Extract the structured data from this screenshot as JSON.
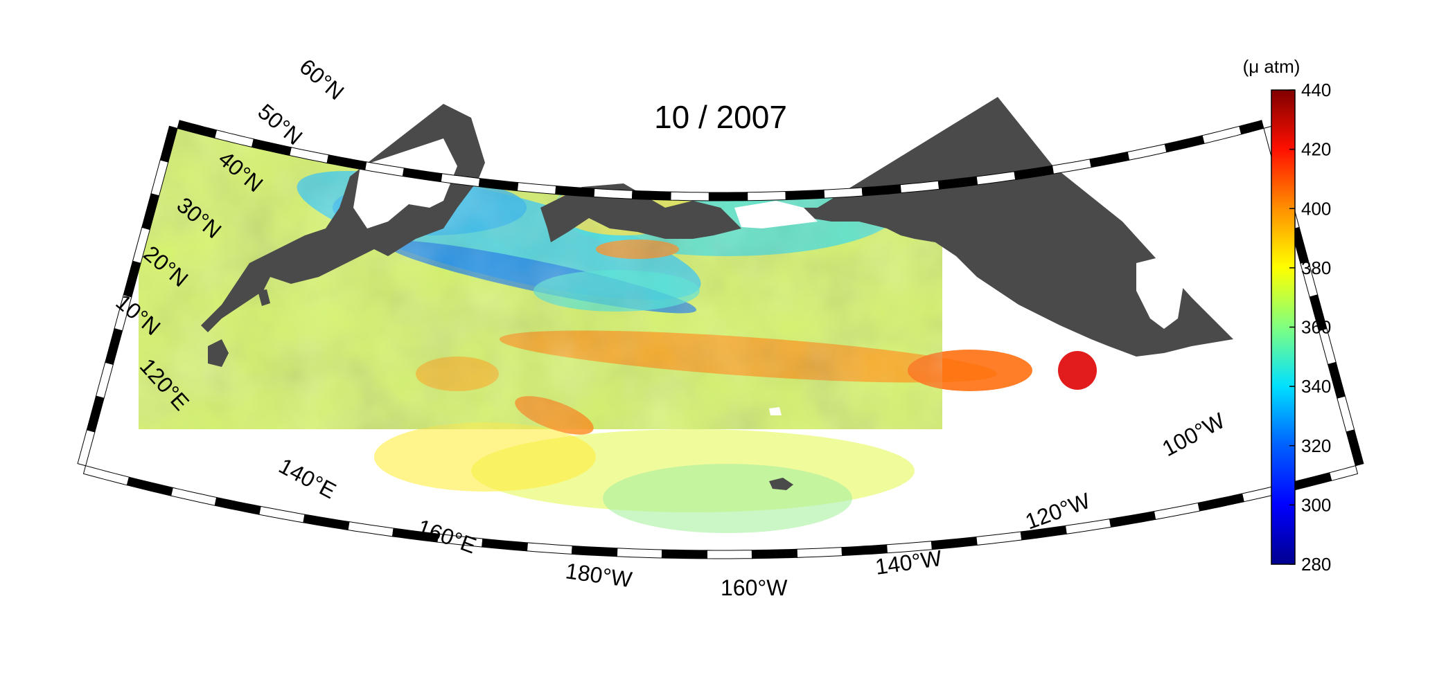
{
  "title": "10 / 2007",
  "colorbar": {
    "unit": "(μ atm)",
    "min": 280,
    "max": 440,
    "ticks": [
      "440",
      "420",
      "400",
      "380",
      "360",
      "340",
      "320",
      "300",
      "280"
    ],
    "colors": [
      "#00008f",
      "#0000ff",
      "#0080ff",
      "#00ffff",
      "#80ff80",
      "#ffff00",
      "#ff8000",
      "#ff0000",
      "#800000"
    ]
  },
  "map": {
    "land_color": "#4a4a4a",
    "lat_labels": [
      "60°N",
      "50°N",
      "40°N",
      "30°N",
      "20°N",
      "10°N"
    ],
    "lon_labels": [
      "120°E",
      "140°E",
      "160°E",
      "180°W",
      "160°W",
      "140°W",
      "120°W",
      "100°W"
    ]
  }
}
